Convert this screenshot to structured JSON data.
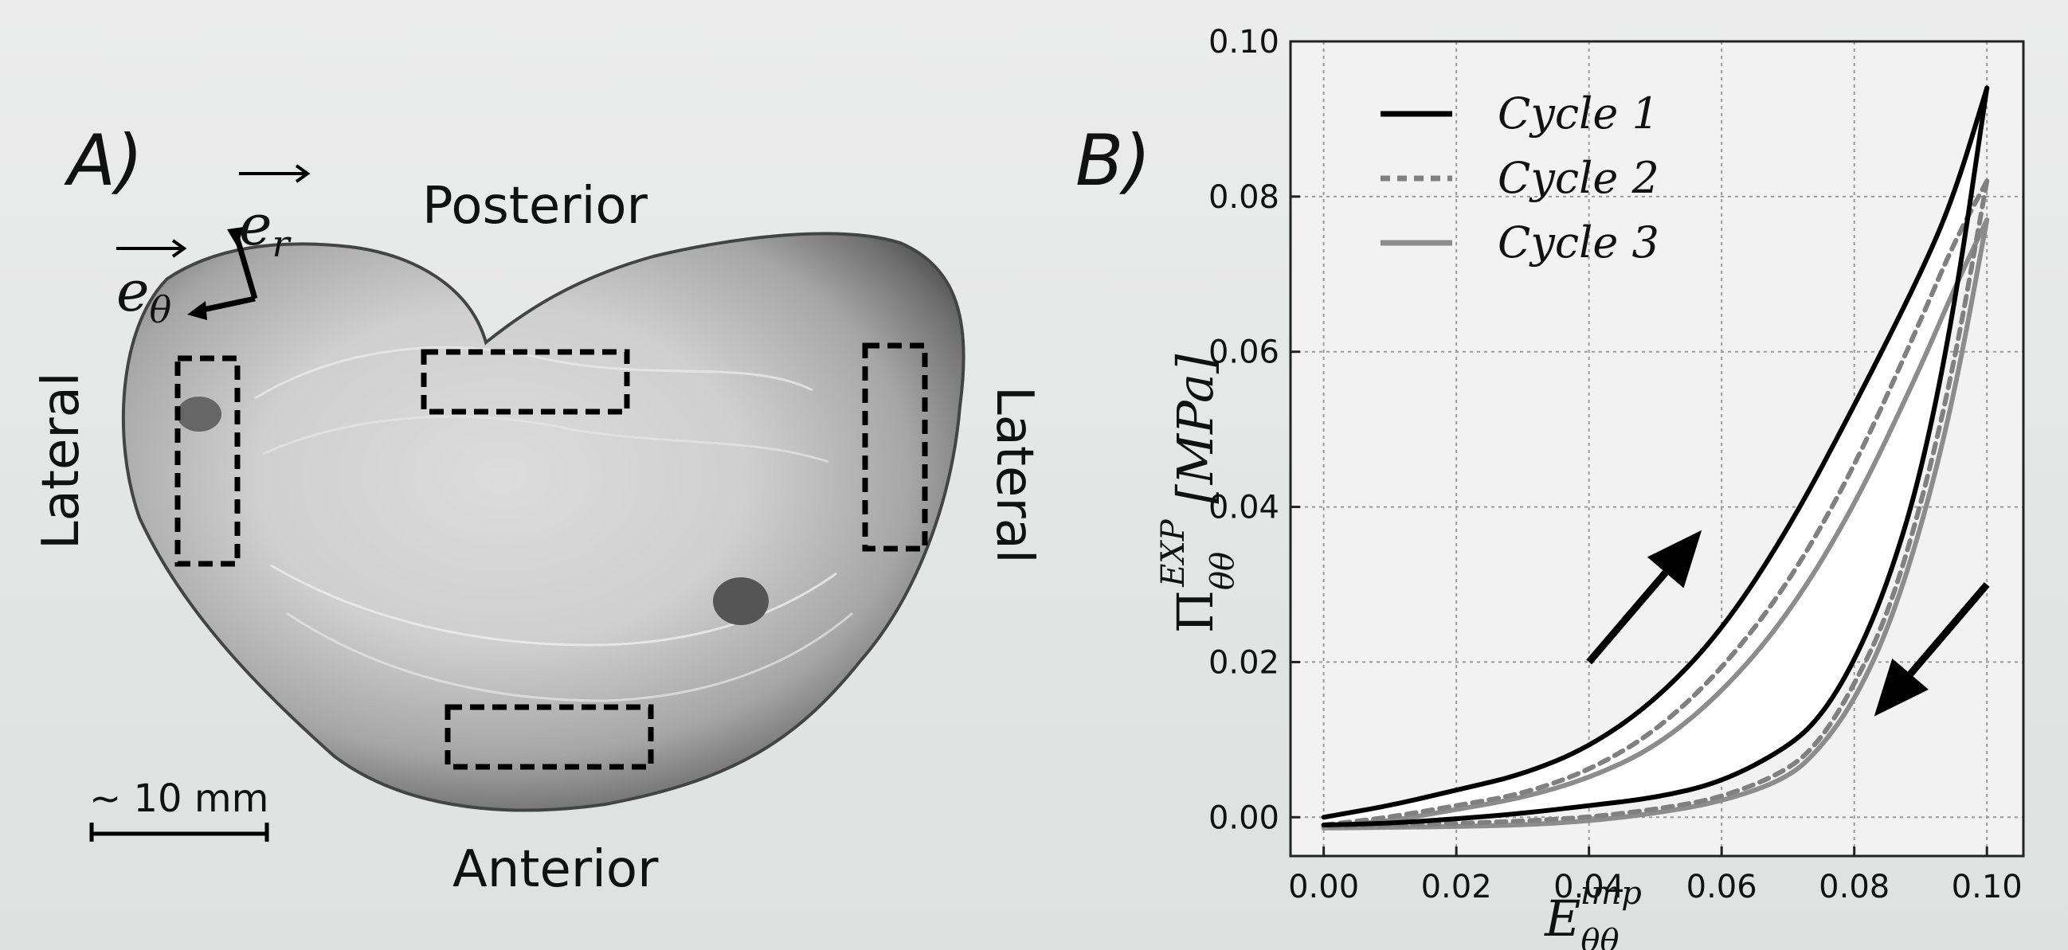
{
  "panel_a": {
    "panel_label": "A)",
    "posterior": "Posterior",
    "anterior": "Anterior",
    "lateral_left": "Lateral",
    "lateral_right": "Lateral",
    "scale_label": "~ 10 mm",
    "vector_r": "e_r",
    "vector_theta": "e_θ"
  },
  "panel_b": {
    "panel_label": "B)"
  },
  "chart_data": {
    "type": "line",
    "xlabel": "E_θθ^imp",
    "ylabel": "Π_θθ^EXP [MPa]",
    "xlim": [
      -0.005,
      0.1055
    ],
    "ylim": [
      -0.005,
      0.1
    ],
    "xticks": [
      "0.00",
      "0.02",
      "0.04",
      "0.06",
      "0.08",
      "0.10"
    ],
    "yticks": [
      "0.00",
      "0.02",
      "0.04",
      "0.06",
      "0.08",
      "0.10"
    ],
    "grid": true,
    "legend_position": "top-left",
    "series": [
      {
        "name": "Cycle 1",
        "color": "#000000",
        "style": "solid",
        "loading": {
          "x": [
            0,
            0.01,
            0.02,
            0.03,
            0.04,
            0.05,
            0.06,
            0.07,
            0.08,
            0.09,
            0.095,
            0.1
          ],
          "y": [
            0,
            0.0015,
            0.0035,
            0.0055,
            0.009,
            0.015,
            0.024,
            0.037,
            0.053,
            0.07,
            0.08,
            0.094
          ]
        },
        "unloading": {
          "x": [
            0.1,
            0.095,
            0.09,
            0.085,
            0.08,
            0.075,
            0.07,
            0.06,
            0.05,
            0.04,
            0.03,
            0.02,
            0.01,
            0
          ],
          "y": [
            0.094,
            0.065,
            0.044,
            0.03,
            0.02,
            0.013,
            0.009,
            0.0045,
            0.0025,
            0.0015,
            0.0005,
            -0.0002,
            -0.0008,
            -0.001
          ]
        }
      },
      {
        "name": "Cycle 2",
        "color": "#808080",
        "style": "dashed",
        "loading": {
          "x": [
            0,
            0.01,
            0.02,
            0.03,
            0.04,
            0.05,
            0.06,
            0.07,
            0.08,
            0.09,
            0.095,
            0.1
          ],
          "y": [
            -0.001,
            0,
            0.0015,
            0.003,
            0.006,
            0.011,
            0.019,
            0.03,
            0.045,
            0.064,
            0.074,
            0.082
          ]
        },
        "unloading": {
          "x": [
            0.1,
            0.095,
            0.09,
            0.085,
            0.08,
            0.075,
            0.07,
            0.06,
            0.05,
            0.04,
            0.03,
            0.02,
            0.01,
            0
          ],
          "y": [
            0.082,
            0.058,
            0.04,
            0.026,
            0.017,
            0.01,
            0.006,
            0.0025,
            0.001,
            0,
            -0.0005,
            -0.0008,
            -0.001,
            -0.0012
          ]
        }
      },
      {
        "name": "Cycle 3",
        "color": "#8c8c8c",
        "style": "solid",
        "loading": {
          "x": [
            0,
            0.01,
            0.02,
            0.03,
            0.04,
            0.05,
            0.06,
            0.07,
            0.08,
            0.09,
            0.095,
            0.1
          ],
          "y": [
            -0.0012,
            -0.0005,
            0.001,
            0.0025,
            0.005,
            0.009,
            0.016,
            0.026,
            0.04,
            0.058,
            0.068,
            0.077
          ]
        },
        "unloading": {
          "x": [
            0.1,
            0.095,
            0.09,
            0.085,
            0.08,
            0.075,
            0.07,
            0.06,
            0.05,
            0.04,
            0.03,
            0.02,
            0.01,
            0
          ],
          "y": [
            0.077,
            0.054,
            0.037,
            0.024,
            0.015,
            0.009,
            0.005,
            0.002,
            0.0005,
            -0.0005,
            -0.001,
            -0.0012,
            -0.0013,
            -0.0014
          ]
        }
      }
    ],
    "annotations": [
      {
        "type": "arrow",
        "direction": "up-right",
        "from": [
          0.04,
          0.02
        ],
        "to": [
          0.057,
          0.037
        ]
      },
      {
        "type": "arrow",
        "direction": "down-left",
        "from": [
          0.1,
          0.03
        ],
        "to": [
          0.083,
          0.013
        ]
      }
    ]
  }
}
